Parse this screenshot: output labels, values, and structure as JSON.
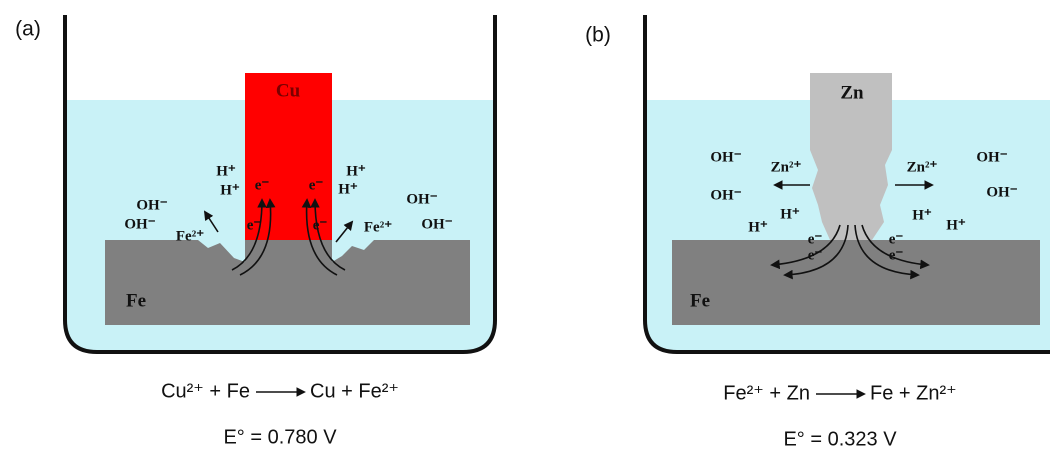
{
  "panels": [
    {
      "label": "(a)",
      "electrode": "Cu",
      "substrate": "Fe",
      "ions": [
        "H⁺",
        "H⁺",
        "OH⁻",
        "OH⁻",
        "Fe²⁺",
        "H⁺",
        "H⁺",
        "OH⁻",
        "OH⁻",
        "Fe²⁺"
      ],
      "electrons": [
        "e⁻",
        "e⁻",
        "e⁻",
        "e⁻"
      ],
      "equation": {
        "reactants": "Cu²⁺ + Fe",
        "products": "Cu + Fe²⁺"
      },
      "potential": "E° = 0.780 V"
    },
    {
      "label": "(b)",
      "electrode": "Zn",
      "substrate": "Fe",
      "ions": [
        "OH⁻",
        "OH⁻",
        "Zn²⁺",
        "Zn²⁺",
        "OH⁻",
        "OH⁻",
        "H⁺",
        "H⁺",
        "H⁺",
        "H⁺"
      ],
      "electrons": [
        "e⁻",
        "e⁻",
        "e⁻",
        "e⁻"
      ],
      "equation": {
        "reactants": "Fe²⁺ + Zn",
        "products": "Fe + Zn²⁺"
      },
      "potential": "E° = 0.323 V"
    }
  ]
}
